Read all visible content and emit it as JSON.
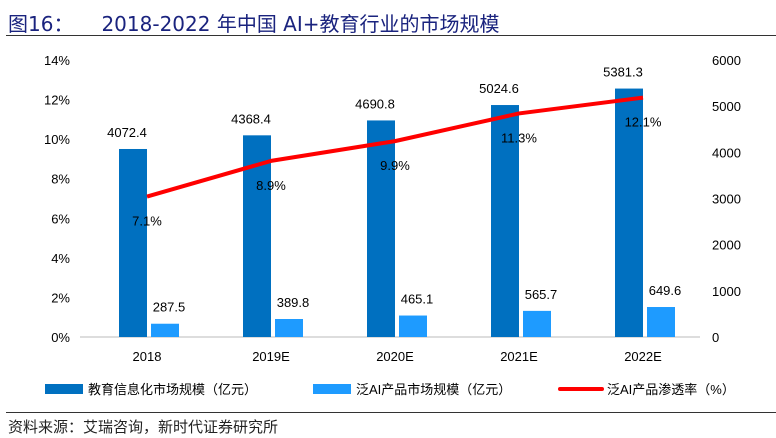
{
  "figure_label": "图16：",
  "title": "2018-2022 年中国 AI+教育行业的市场规模",
  "source": "资料来源：艾瑞咨询，新时代证券研究所",
  "chart_data": {
    "type": "bar",
    "categories": [
      "2018",
      "2019E",
      "2020E",
      "2021E",
      "2022E"
    ],
    "series": [
      {
        "name": "教育信息化市场规模（亿元）",
        "type": "bar",
        "axis": "right",
        "color": "#0070c0",
        "values": [
          4072.4,
          4368.4,
          4690.8,
          5024.6,
          5381.3
        ],
        "labels": [
          "4072.4",
          "4368.4",
          "4690.8",
          "5024.6",
          "5381.3"
        ]
      },
      {
        "name": "泛AI产品市场规模（亿元）",
        "type": "bar",
        "axis": "right",
        "color": "#1e9bff",
        "values": [
          287.5,
          389.8,
          465.1,
          565.7,
          649.6
        ],
        "labels": [
          "287.5",
          "389.8",
          "465.1",
          "565.7",
          "649.6"
        ]
      },
      {
        "name": "泛AI产品渗透率（%）",
        "type": "line",
        "axis": "left",
        "color": "#ff0000",
        "values": [
          7.1,
          8.9,
          9.9,
          11.3,
          12.1
        ],
        "labels": [
          "7.1%",
          "8.9%",
          "9.9%",
          "11.3%",
          "12.1%"
        ]
      }
    ],
    "left_axis": {
      "range": [
        0,
        14
      ],
      "ticks": [
        "0%",
        "2%",
        "4%",
        "6%",
        "8%",
        "10%",
        "12%",
        "14%"
      ]
    },
    "right_axis": {
      "range": [
        0,
        6000
      ],
      "ticks": [
        "0",
        "1000",
        "2000",
        "3000",
        "4000",
        "5000",
        "6000"
      ]
    },
    "grid": false,
    "legend": "bottom"
  }
}
